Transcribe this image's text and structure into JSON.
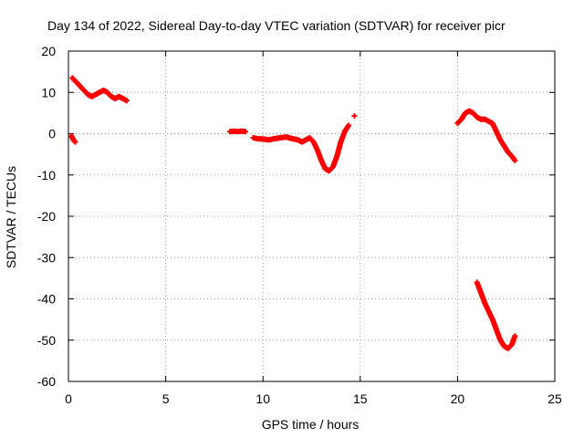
{
  "chart_data": {
    "type": "scatter",
    "title": "Day 134 of 2022, Sidereal Day-to-day VTEC variation (SDTVAR) for receiver picr",
    "xlabel": "GPS time / hours",
    "ylabel": "SDTVAR / TECUs",
    "xlim": [
      0,
      25
    ],
    "ylim": [
      -60,
      20
    ],
    "xticks": [
      0,
      5,
      10,
      15,
      20,
      25
    ],
    "yticks": [
      -60,
      -50,
      -40,
      -30,
      -20,
      -10,
      0,
      10,
      20
    ],
    "grid": true,
    "marker": "+",
    "color": "#ff0000",
    "series": [
      {
        "name": "SDTVAR",
        "segments": [
          {
            "x": [
              0.15,
              0.25,
              0.35
            ],
            "y": [
              -0.5,
              -1.5,
              -2.0
            ]
          },
          {
            "x": [
              0.2,
              0.4,
              0.6,
              0.8,
              1.0,
              1.2,
              1.4,
              1.6,
              1.8,
              2.0,
              2.2,
              2.4,
              2.6,
              2.8,
              3.0
            ],
            "y": [
              13.5,
              12.5,
              11.5,
              10.5,
              9.5,
              9.0,
              9.5,
              10.0,
              10.5,
              10.0,
              9.0,
              8.5,
              9.0,
              8.5,
              8.0
            ]
          },
          {
            "x": [
              8.3,
              8.5,
              8.7,
              8.9,
              9.1
            ],
            "y": [
              0.5,
              0.6,
              0.5,
              0.6,
              0.5
            ]
          },
          {
            "x": [
              9.5,
              9.7,
              10.0,
              10.3,
              10.6,
              10.9,
              11.2,
              11.5,
              11.8,
              12.0,
              12.2,
              12.4,
              12.6,
              12.8,
              13.0,
              13.2,
              13.4,
              13.6,
              13.8,
              14.0,
              14.2,
              14.4
            ],
            "y": [
              -1.0,
              -1.2,
              -1.3,
              -1.5,
              -1.2,
              -1.0,
              -0.8,
              -1.2,
              -1.5,
              -2.0,
              -1.5,
              -1.0,
              -2.0,
              -4.0,
              -6.5,
              -8.5,
              -9.0,
              -8.0,
              -5.5,
              -2.0,
              0.5,
              2.0
            ]
          },
          {
            "x": [
              14.7
            ],
            "y": [
              4.3
            ]
          },
          {
            "x": [
              20.0,
              20.2,
              20.4,
              20.6,
              20.8,
              21.0,
              21.2,
              21.4,
              21.6,
              21.8,
              22.0,
              22.2,
              22.4,
              22.6,
              22.8,
              22.95
            ],
            "y": [
              2.5,
              3.5,
              5.0,
              5.5,
              5.0,
              4.0,
              3.5,
              3.5,
              3.0,
              2.5,
              0.5,
              -1.5,
              -3.0,
              -4.5,
              -5.5,
              -6.5
            ]
          },
          {
            "x": [
              21.0,
              21.2,
              21.4,
              21.6,
              21.8,
              22.0,
              22.2,
              22.4,
              22.6,
              22.8,
              22.95
            ],
            "y": [
              -36.0,
              -38.5,
              -41.0,
              -43.0,
              -45.0,
              -47.5,
              -50.0,
              -51.5,
              -52.0,
              -51.0,
              -49.0
            ]
          }
        ]
      }
    ]
  }
}
